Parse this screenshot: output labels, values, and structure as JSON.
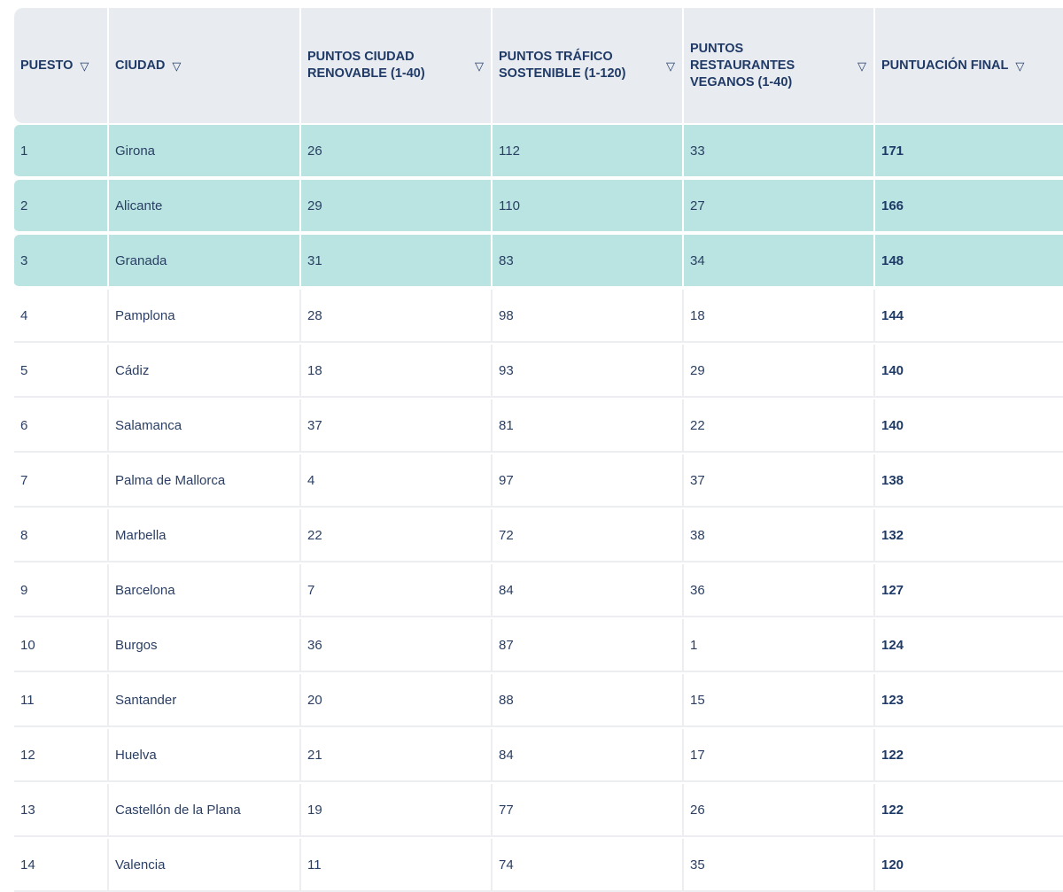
{
  "table": {
    "columns": [
      {
        "label": "PUESTO"
      },
      {
        "label": "CIUDAD"
      },
      {
        "label": "PUNTOS CIUDAD RENOVABLE (1-40)"
      },
      {
        "label": "PUNTOS TRÁFICO SOSTENIBLE (1-120)"
      },
      {
        "label": "PUNTOS RESTAURANTES VEGANOS (1-40)"
      },
      {
        "label": "PUNTUACIÓN FINAL"
      }
    ],
    "sort_icon": "▽",
    "highlight_color": "#b9e4e2",
    "header_bg": "#e8ebf0",
    "rows": [
      [
        "1",
        "Girona",
        "26",
        "112",
        "33",
        "171"
      ],
      [
        "2",
        "Alicante",
        "29",
        "110",
        "27",
        "166"
      ],
      [
        "3",
        "Granada",
        "31",
        "83",
        "34",
        "148"
      ],
      [
        "4",
        "Pamplona",
        "28",
        "98",
        "18",
        "144"
      ],
      [
        "5",
        "Cádiz",
        "18",
        "93",
        "29",
        "140"
      ],
      [
        "6",
        "Salamanca",
        "37",
        "81",
        "22",
        "140"
      ],
      [
        "7",
        "Palma de Mallorca",
        "4",
        "97",
        "37",
        "138"
      ],
      [
        "8",
        "Marbella",
        "22",
        "72",
        "38",
        "132"
      ],
      [
        "9",
        "Barcelona",
        "7",
        "84",
        "36",
        "127"
      ],
      [
        "10",
        "Burgos",
        "36",
        "87",
        "1",
        "124"
      ],
      [
        "11",
        "Santander",
        "20",
        "88",
        "15",
        "123"
      ],
      [
        "12",
        "Huelva",
        "21",
        "84",
        "17",
        "122"
      ],
      [
        "13",
        "Castellón de la Plana",
        "19",
        "77",
        "26",
        "122"
      ],
      [
        "14",
        "Valencia",
        "11",
        "74",
        "35",
        "120"
      ]
    ]
  }
}
